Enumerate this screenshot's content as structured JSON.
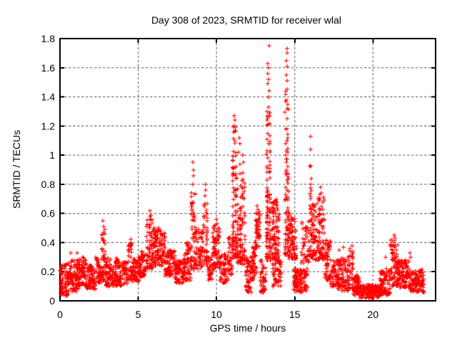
{
  "window": {
    "background": "#ffffff"
  },
  "chart_data": {
    "type": "scatter",
    "title": "Day 308 of 2023, SRMTID for receiver wlal",
    "xlabel": "GPS time / hours",
    "ylabel": "SRMTID / TECUs",
    "xlim": [
      0,
      24
    ],
    "ylim": [
      0,
      1.8
    ],
    "xticks": [
      0,
      5,
      10,
      15,
      20
    ],
    "yticks": [
      0,
      0.2,
      0.4,
      0.6,
      0.8,
      1,
      1.2,
      1.4,
      1.6,
      1.8
    ],
    "grid": true,
    "grid_style": "dashed",
    "grid_color": "#868686",
    "axis_color": "#000000",
    "background_color": "#ffffff",
    "legend": "none",
    "marker": "plus",
    "marker_color": "#ff0000",
    "marker_size_px": 7,
    "seed": 20231104,
    "series_name": "SRMTID",
    "bands_key": [
      "t_start_h",
      "t_end_h",
      "value_min_TECU",
      "value_max_TECU",
      "n_points",
      "low_bias_exponent",
      "n_columns"
    ],
    "bands": [
      [
        0.0,
        0.5,
        0.03,
        0.25,
        80,
        1.1,
        0
      ],
      [
        0.5,
        1.2,
        0.06,
        0.28,
        100,
        1.1,
        0
      ],
      [
        1.2,
        1.7,
        0.1,
        0.3,
        70,
        1.1,
        0
      ],
      [
        1.7,
        2.3,
        0.08,
        0.24,
        80,
        1.0,
        0
      ],
      [
        2.3,
        2.65,
        0.12,
        0.3,
        50,
        1.1,
        0
      ],
      [
        2.65,
        2.9,
        0.14,
        0.5,
        40,
        1.6,
        3
      ],
      [
        2.9,
        3.7,
        0.1,
        0.3,
        110,
        1.2,
        0
      ],
      [
        3.7,
        4.3,
        0.1,
        0.27,
        75,
        1.1,
        0
      ],
      [
        4.3,
        4.6,
        0.14,
        0.4,
        40,
        1.4,
        2
      ],
      [
        4.6,
        5.15,
        0.13,
        0.3,
        70,
        1.1,
        0
      ],
      [
        5.15,
        5.5,
        0.17,
        0.35,
        50,
        1.2,
        0
      ],
      [
        5.5,
        5.95,
        0.22,
        0.58,
        80,
        1.5,
        3
      ],
      [
        5.95,
        6.7,
        0.24,
        0.5,
        120,
        1.2,
        0
      ],
      [
        6.7,
        7.35,
        0.17,
        0.35,
        85,
        1.1,
        0
      ],
      [
        7.35,
        7.85,
        0.12,
        0.28,
        65,
        1.1,
        0
      ],
      [
        7.85,
        8.35,
        0.14,
        0.4,
        70,
        1.3,
        0
      ],
      [
        8.35,
        8.65,
        0.22,
        0.78,
        55,
        1.8,
        2
      ],
      [
        8.65,
        9.15,
        0.22,
        0.5,
        65,
        1.2,
        0
      ],
      [
        9.15,
        9.45,
        0.25,
        0.68,
        45,
        1.6,
        2
      ],
      [
        9.45,
        9.75,
        0.14,
        0.3,
        40,
        1.1,
        0
      ],
      [
        9.75,
        10.2,
        0.22,
        0.52,
        70,
        1.3,
        0
      ],
      [
        10.2,
        10.75,
        0.12,
        0.32,
        60,
        1.2,
        0
      ],
      [
        10.75,
        11.0,
        0.18,
        0.45,
        35,
        1.3,
        0
      ],
      [
        11.0,
        11.3,
        0.3,
        1.2,
        95,
        2.0,
        2
      ],
      [
        11.3,
        11.6,
        0.26,
        1.0,
        70,
        2.0,
        2
      ],
      [
        11.6,
        11.85,
        0.25,
        0.85,
        45,
        1.8,
        2
      ],
      [
        11.85,
        12.25,
        0.06,
        0.3,
        60,
        1.2,
        0
      ],
      [
        12.25,
        12.55,
        0.14,
        0.4,
        45,
        1.2,
        0
      ],
      [
        12.5,
        12.8,
        0.35,
        0.62,
        50,
        1.0,
        0
      ],
      [
        12.8,
        13.15,
        0.06,
        0.28,
        50,
        1.2,
        0
      ],
      [
        13.15,
        13.5,
        0.28,
        1.3,
        110,
        2.0,
        2
      ],
      [
        13.5,
        14.0,
        0.28,
        0.7,
        95,
        1.4,
        0
      ],
      [
        13.6,
        14.15,
        0.1,
        0.28,
        55,
        1.1,
        0
      ],
      [
        14.35,
        14.65,
        0.32,
        1.45,
        85,
        2.2,
        2
      ],
      [
        14.6,
        15.1,
        0.28,
        0.6,
        75,
        1.3,
        0
      ],
      [
        14.9,
        15.85,
        0.06,
        0.22,
        110,
        1.2,
        0
      ],
      [
        15.4,
        15.95,
        0.26,
        0.55,
        45,
        1.4,
        0
      ],
      [
        15.92,
        16.12,
        0.3,
        0.95,
        30,
        1.8,
        1
      ],
      [
        16.1,
        16.5,
        0.28,
        0.68,
        65,
        1.3,
        0
      ],
      [
        16.5,
        16.9,
        0.28,
        0.74,
        70,
        1.3,
        0
      ],
      [
        16.9,
        17.3,
        0.14,
        0.42,
        60,
        1.2,
        0
      ],
      [
        17.3,
        17.95,
        0.08,
        0.28,
        80,
        1.1,
        0
      ],
      [
        17.95,
        18.45,
        0.07,
        0.3,
        65,
        1.2,
        0
      ],
      [
        18.45,
        18.75,
        0.08,
        0.36,
        35,
        1.4,
        2
      ],
      [
        18.75,
        19.15,
        0.04,
        0.18,
        55,
        1.2,
        0
      ],
      [
        19.15,
        20.4,
        0.02,
        0.11,
        160,
        1.1,
        0
      ],
      [
        20.4,
        21.1,
        0.04,
        0.22,
        95,
        1.2,
        0
      ],
      [
        21.1,
        21.6,
        0.1,
        0.42,
        85,
        1.4,
        0
      ],
      [
        21.6,
        22.3,
        0.09,
        0.28,
        95,
        1.2,
        0
      ],
      [
        22.3,
        23.3,
        0.06,
        0.22,
        115,
        1.2,
        0
      ]
    ],
    "peaks": [
      [
        0.7,
        0.33
      ],
      [
        1.1,
        0.33
      ],
      [
        2.75,
        0.55
      ],
      [
        2.78,
        0.51
      ],
      [
        2.8,
        0.47
      ],
      [
        4.5,
        0.42
      ],
      [
        4.52,
        0.39
      ],
      [
        5.75,
        0.62
      ],
      [
        5.78,
        0.59
      ],
      [
        5.8,
        0.56
      ],
      [
        6.3,
        0.5
      ],
      [
        6.45,
        0.48
      ],
      [
        8.5,
        0.95
      ],
      [
        8.52,
        0.9
      ],
      [
        8.55,
        0.86
      ],
      [
        8.48,
        0.8
      ],
      [
        9.3,
        0.8
      ],
      [
        9.32,
        0.76
      ],
      [
        9.28,
        0.72
      ],
      [
        10.0,
        0.56
      ],
      [
        10.05,
        0.53
      ],
      [
        11.15,
        1.27
      ],
      [
        11.18,
        1.24
      ],
      [
        11.12,
        1.2
      ],
      [
        11.2,
        1.16
      ],
      [
        11.16,
        1.1
      ],
      [
        11.45,
        1.12
      ],
      [
        11.48,
        1.08
      ],
      [
        11.42,
        1.02
      ],
      [
        11.7,
        1.0
      ],
      [
        11.72,
        0.95
      ],
      [
        11.68,
        0.88
      ],
      [
        12.6,
        0.65
      ],
      [
        12.65,
        0.63
      ],
      [
        12.55,
        0.6
      ],
      [
        13.35,
        1.75
      ],
      [
        13.3,
        1.63
      ],
      [
        13.33,
        1.6
      ],
      [
        13.28,
        1.56
      ],
      [
        13.32,
        1.52
      ],
      [
        13.3,
        1.49
      ],
      [
        13.36,
        1.44
      ],
      [
        13.31,
        1.4
      ],
      [
        13.34,
        1.33
      ],
      [
        13.29,
        1.27
      ],
      [
        13.33,
        1.21
      ],
      [
        13.3,
        1.15
      ],
      [
        13.32,
        1.08
      ],
      [
        14.5,
        1.73
      ],
      [
        14.52,
        1.7
      ],
      [
        14.48,
        1.65
      ],
      [
        14.5,
        1.61
      ],
      [
        14.47,
        1.55
      ],
      [
        14.53,
        1.51
      ],
      [
        14.5,
        1.45
      ],
      [
        14.45,
        1.38
      ],
      [
        14.49,
        1.32
      ],
      [
        14.52,
        1.25
      ],
      [
        14.46,
        1.18
      ],
      [
        14.5,
        1.1
      ],
      [
        14.48,
        1.03
      ],
      [
        14.51,
        0.97
      ],
      [
        14.47,
        0.9
      ],
      [
        14.5,
        0.83
      ],
      [
        14.49,
        0.76
      ],
      [
        16.0,
        1.13
      ],
      [
        16.0,
        1.04
      ],
      [
        15.98,
        0.92
      ],
      [
        16.02,
        0.8
      ],
      [
        16.0,
        0.7
      ],
      [
        16.65,
        0.78
      ],
      [
        16.68,
        0.74
      ],
      [
        16.6,
        0.7
      ],
      [
        17.85,
        0.35
      ],
      [
        18.1,
        0.37
      ],
      [
        18.68,
        0.38
      ],
      [
        18.7,
        0.34
      ],
      [
        20.8,
        0.3
      ],
      [
        21.35,
        0.45
      ],
      [
        21.38,
        0.43
      ],
      [
        21.3,
        0.4
      ],
      [
        22.35,
        0.33
      ],
      [
        22.4,
        0.3
      ]
    ]
  }
}
